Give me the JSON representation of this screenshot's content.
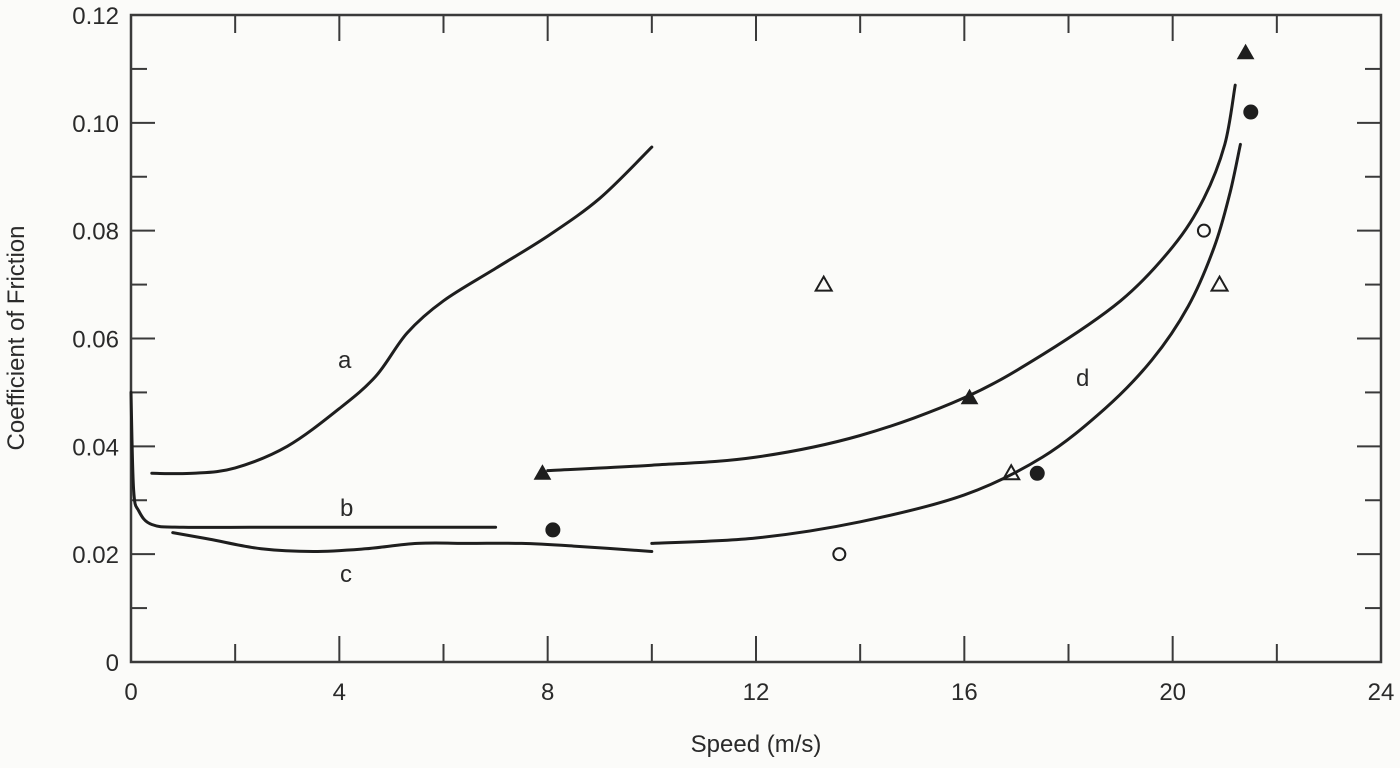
{
  "chart_data": {
    "type": "line",
    "title": "",
    "xlabel": "Speed (m/s)",
    "ylabel": "Coefficient of Friction",
    "xlim": [
      0,
      24
    ],
    "ylim": [
      0,
      0.12
    ],
    "grid": false,
    "legend_position": "none",
    "x_ticks": [
      0,
      4,
      8,
      12,
      16,
      20,
      24
    ],
    "x_tick_labels": [
      "0",
      "4",
      "8",
      "12",
      "16",
      "20",
      "24"
    ],
    "x_minor_ticks": [
      2,
      6,
      10,
      14,
      18,
      22
    ],
    "y_ticks": [
      0,
      0.02,
      0.04,
      0.06,
      0.08,
      0.1,
      0.12
    ],
    "y_tick_labels": [
      "0",
      "0.02",
      "0.04",
      "0.06",
      "0.08",
      "0.10",
      "0.12"
    ],
    "y_minor_ticks": [
      0.01,
      0.03,
      0.05,
      0.07,
      0.09,
      0.11
    ],
    "series": [
      {
        "name": "a",
        "kind": "curve",
        "label_at": [
          4.1,
          0.056
        ],
        "points": [
          [
            0.4,
            0.035
          ],
          [
            1.2,
            0.035
          ],
          [
            2.0,
            0.036
          ],
          [
            3.0,
            0.04
          ],
          [
            4.0,
            0.047
          ],
          [
            4.7,
            0.053
          ],
          [
            5.3,
            0.061
          ],
          [
            6.0,
            0.067
          ],
          [
            7.0,
            0.073
          ],
          [
            8.0,
            0.079
          ],
          [
            9.0,
            0.086
          ],
          [
            10.0,
            0.0955
          ]
        ]
      },
      {
        "name": "b",
        "kind": "curve",
        "label_at": [
          4.1,
          0.0275
        ],
        "points": [
          [
            0.0,
            0.05
          ],
          [
            0.05,
            0.032
          ],
          [
            0.15,
            0.028
          ],
          [
            0.4,
            0.0255
          ],
          [
            1.0,
            0.025
          ],
          [
            3.0,
            0.025
          ],
          [
            5.0,
            0.025
          ],
          [
            7.0,
            0.025
          ]
        ]
      },
      {
        "name": "c",
        "kind": "curve",
        "label_at": [
          4.1,
          0.016
        ],
        "points": [
          [
            0.8,
            0.024
          ],
          [
            1.5,
            0.0228
          ],
          [
            2.5,
            0.021
          ],
          [
            3.5,
            0.0205
          ],
          [
            4.5,
            0.021
          ],
          [
            5.5,
            0.022
          ],
          [
            6.5,
            0.022
          ],
          [
            7.5,
            0.022
          ],
          [
            8.5,
            0.0215
          ],
          [
            10.0,
            0.0205
          ]
        ]
      },
      {
        "name": "d-upper",
        "kind": "curve",
        "points": [
          [
            8.0,
            0.0355
          ],
          [
            10.0,
            0.0365
          ],
          [
            12.0,
            0.038
          ],
          [
            14.0,
            0.042
          ],
          [
            16.0,
            0.049
          ],
          [
            17.5,
            0.057
          ],
          [
            19.0,
            0.067
          ],
          [
            20.0,
            0.077
          ],
          [
            20.6,
            0.086
          ],
          [
            21.0,
            0.096
          ],
          [
            21.2,
            0.107
          ]
        ]
      },
      {
        "name": "d-lower",
        "kind": "curve",
        "label_at": [
          18.3,
          0.052
        ],
        "points": [
          [
            10.0,
            0.022
          ],
          [
            12.0,
            0.023
          ],
          [
            14.0,
            0.026
          ],
          [
            16.0,
            0.031
          ],
          [
            17.5,
            0.038
          ],
          [
            18.7,
            0.047
          ],
          [
            19.6,
            0.056
          ],
          [
            20.3,
            0.066
          ],
          [
            20.8,
            0.077
          ],
          [
            21.1,
            0.087
          ],
          [
            21.3,
            0.096
          ]
        ]
      },
      {
        "name": "filled-triangle",
        "kind": "markers",
        "marker": "filled-triangle",
        "points": [
          [
            7.9,
            0.035
          ],
          [
            16.1,
            0.049
          ],
          [
            21.4,
            0.113
          ]
        ]
      },
      {
        "name": "open-triangle",
        "kind": "markers",
        "marker": "open-triangle",
        "points": [
          [
            13.3,
            0.07
          ],
          [
            16.9,
            0.035
          ],
          [
            20.9,
            0.07
          ]
        ]
      },
      {
        "name": "filled-circle",
        "kind": "markers",
        "marker": "filled-circle",
        "points": [
          [
            8.1,
            0.0245
          ],
          [
            17.4,
            0.035
          ],
          [
            21.5,
            0.102
          ]
        ]
      },
      {
        "name": "open-circle",
        "kind": "markers",
        "marker": "open-circle",
        "points": [
          [
            13.6,
            0.02
          ],
          [
            20.6,
            0.08
          ]
        ]
      }
    ],
    "annotations": [
      "a",
      "b",
      "c",
      "d"
    ]
  },
  "labels": {
    "x_axis_title": "Speed (m/s)",
    "y_axis_title": "Coefficient of Friction",
    "curve_a": "a",
    "curve_b": "b",
    "curve_c": "c",
    "curve_d": "d"
  },
  "colors": {
    "background": "#fbfbf9",
    "ink": "#1e1e1e",
    "axis": "#3a3a3a"
  }
}
